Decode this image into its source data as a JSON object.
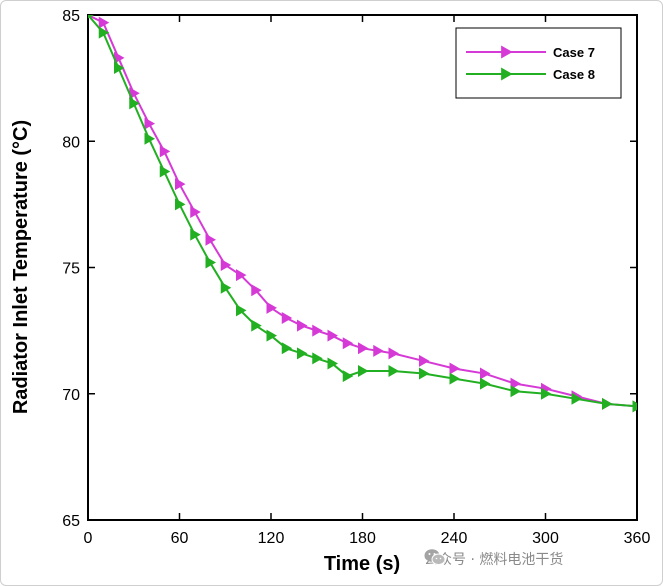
{
  "chart_data": {
    "type": "line",
    "xlabel": "Time (s)",
    "ylabel": "Radiator Inlet Temperature (°C)",
    "xlim": [
      0,
      360
    ],
    "ylim": [
      65,
      85
    ],
    "xticks": [
      0,
      60,
      120,
      180,
      240,
      300,
      360
    ],
    "yticks": [
      65,
      70,
      75,
      80,
      85
    ],
    "legend_position": "top-right",
    "series": [
      {
        "name": "Case 7",
        "color": "#d63ad6",
        "marker": "triangle-right",
        "x": [
          0,
          10,
          20,
          30,
          40,
          50,
          60,
          70,
          80,
          90,
          100,
          110,
          120,
          130,
          140,
          150,
          160,
          170,
          180,
          190,
          200,
          220,
          240,
          260,
          280,
          300,
          320,
          340,
          360
        ],
        "y": [
          85.0,
          84.7,
          83.3,
          81.9,
          80.7,
          79.6,
          78.3,
          77.2,
          76.1,
          75.1,
          74.7,
          74.1,
          73.4,
          73.0,
          72.7,
          72.5,
          72.3,
          72.0,
          71.8,
          71.7,
          71.6,
          71.3,
          71.0,
          70.8,
          70.4,
          70.2,
          69.9,
          69.6,
          69.5
        ]
      },
      {
        "name": "Case 8",
        "color": "#22b022",
        "marker": "triangle-right",
        "x": [
          0,
          10,
          20,
          30,
          40,
          50,
          60,
          70,
          80,
          90,
          100,
          110,
          120,
          130,
          140,
          150,
          160,
          170,
          180,
          200,
          220,
          240,
          260,
          280,
          300,
          320,
          340,
          360
        ],
        "y": [
          85.0,
          84.3,
          82.9,
          81.5,
          80.1,
          78.8,
          77.5,
          76.3,
          75.2,
          74.2,
          73.3,
          72.7,
          72.3,
          71.8,
          71.6,
          71.4,
          71.2,
          70.7,
          70.9,
          70.9,
          70.8,
          70.6,
          70.4,
          70.1,
          70.0,
          69.8,
          69.6,
          69.5
        ]
      }
    ]
  },
  "watermark": {
    "text": "公众号 · 燃料电池干货",
    "icon": "wechat-icon",
    "color": "#8a8a8a"
  }
}
